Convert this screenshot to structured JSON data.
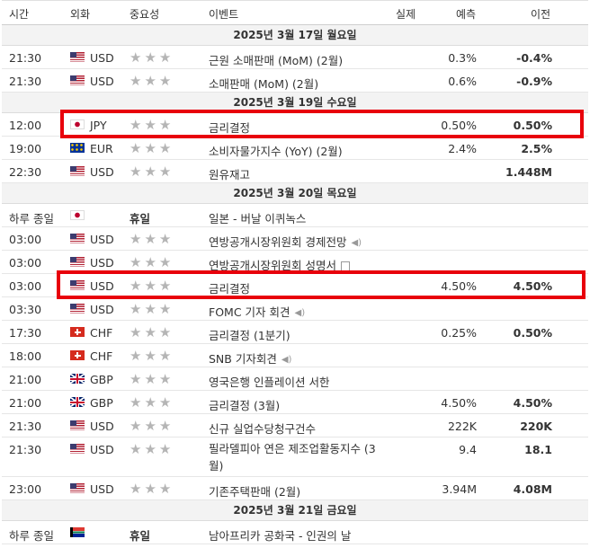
{
  "header": {
    "time": "시간",
    "currency": "외화",
    "importance": "중요성",
    "event": "이벤트",
    "actual": "실제",
    "forecast": "예측",
    "previous": "이전"
  },
  "groups": [
    {
      "date": "2025년 3월 17일 월요일",
      "rows": [
        {
          "time": "21:30",
          "flag": "us",
          "cur": "USD",
          "imp": "★★★",
          "event": "근원 소매판매 (MoM) (2월)",
          "actual": "",
          "forecast": "0.3%",
          "previous": "-0.4%"
        },
        {
          "time": "21:30",
          "flag": "us",
          "cur": "USD",
          "imp": "★★★",
          "event": "소매판매 (MoM) (2월)",
          "actual": "",
          "forecast": "0.6%",
          "previous": "-0.9%"
        }
      ]
    },
    {
      "date": "2025년 3월 19일 수요일",
      "rows": [
        {
          "time": "12:00",
          "flag": "jp",
          "cur": "JPY",
          "imp": "★★★",
          "event": "금리결정",
          "actual": "",
          "forecast": "0.50%",
          "previous": "0.50%"
        },
        {
          "time": "19:00",
          "flag": "eu",
          "cur": "EUR",
          "imp": "★★★",
          "event": "소비자물가지수 (YoY) (2월)",
          "actual": "",
          "forecast": "2.4%",
          "previous": "2.5%"
        },
        {
          "time": "22:30",
          "flag": "us",
          "cur": "USD",
          "imp": "★★★",
          "event": "원유재고",
          "actual": "",
          "forecast": "",
          "previous": "1.448M"
        }
      ]
    },
    {
      "date": "2025년 3월 20일 목요일",
      "rows": [
        {
          "time": "하루 종일",
          "flag": "jp",
          "cur": "",
          "imp": "휴일",
          "holiday": true,
          "event": "일본 - 버날 이퀴녹스",
          "actual": "",
          "forecast": "",
          "previous": ""
        },
        {
          "time": "03:00",
          "flag": "us",
          "cur": "USD",
          "imp": "★★★",
          "event": "연방공개시장위원회 경제전망",
          "icon": "speaker",
          "actual": "",
          "forecast": "",
          "previous": ""
        },
        {
          "time": "03:00",
          "flag": "us",
          "cur": "USD",
          "imp": "★★★",
          "event": "연방공개시장위원회 성명서",
          "icon": "doc",
          "actual": "",
          "forecast": "",
          "previous": ""
        },
        {
          "time": "03:00",
          "flag": "us",
          "cur": "USD",
          "imp": "★★★",
          "event": "금리결정",
          "actual": "",
          "forecast": "4.50%",
          "previous": "4.50%"
        },
        {
          "time": "03:30",
          "flag": "us",
          "cur": "USD",
          "imp": "★★★",
          "event": "FOMC 기자 회견",
          "icon": "speaker",
          "actual": "",
          "forecast": "",
          "previous": ""
        },
        {
          "time": "17:30",
          "flag": "ch",
          "cur": "CHF",
          "imp": "★★★",
          "event": "금리결정 (1분기)",
          "actual": "",
          "forecast": "0.25%",
          "previous": "0.50%"
        },
        {
          "time": "18:00",
          "flag": "ch",
          "cur": "CHF",
          "imp": "★★★",
          "event": "SNB 기자회견",
          "icon": "speaker",
          "actual": "",
          "forecast": "",
          "previous": ""
        },
        {
          "time": "21:00",
          "flag": "gb",
          "cur": "GBP",
          "imp": "★★★",
          "event": "영국은행 인플레이션 서한",
          "actual": "",
          "forecast": "",
          "previous": ""
        },
        {
          "time": "21:00",
          "flag": "gb",
          "cur": "GBP",
          "imp": "★★★",
          "event": "금리결정 (3월)",
          "actual": "",
          "forecast": "4.50%",
          "previous": "4.50%"
        },
        {
          "time": "21:30",
          "flag": "us",
          "cur": "USD",
          "imp": "★★★",
          "event": "신규 실업수당청구건수",
          "actual": "",
          "forecast": "222K",
          "previous": "220K"
        },
        {
          "time": "21:30",
          "flag": "us",
          "cur": "USD",
          "imp": "★★★",
          "event": "필라델피아 연은 제조업활동지수 (3월)",
          "tall": true,
          "actual": "",
          "forecast": "9.4",
          "previous": "18.1"
        },
        {
          "time": "23:00",
          "flag": "us",
          "cur": "USD",
          "imp": "★★★",
          "event": "기존주택판매 (2월)",
          "actual": "",
          "forecast": "3.94M",
          "previous": "4.08M"
        }
      ]
    },
    {
      "date": "2025년 3월 21일 금요일",
      "rows": [
        {
          "time": "하루 종일",
          "flag": "za",
          "cur": "",
          "imp": "휴일",
          "holiday": true,
          "event": "남아프리카 공화국 - 인권의 날",
          "actual": "",
          "forecast": "",
          "previous": ""
        }
      ]
    }
  ],
  "colors": {
    "highlight": "#e8000b",
    "star": "#b5b5b5",
    "date_bar": "#f3f3f3"
  }
}
